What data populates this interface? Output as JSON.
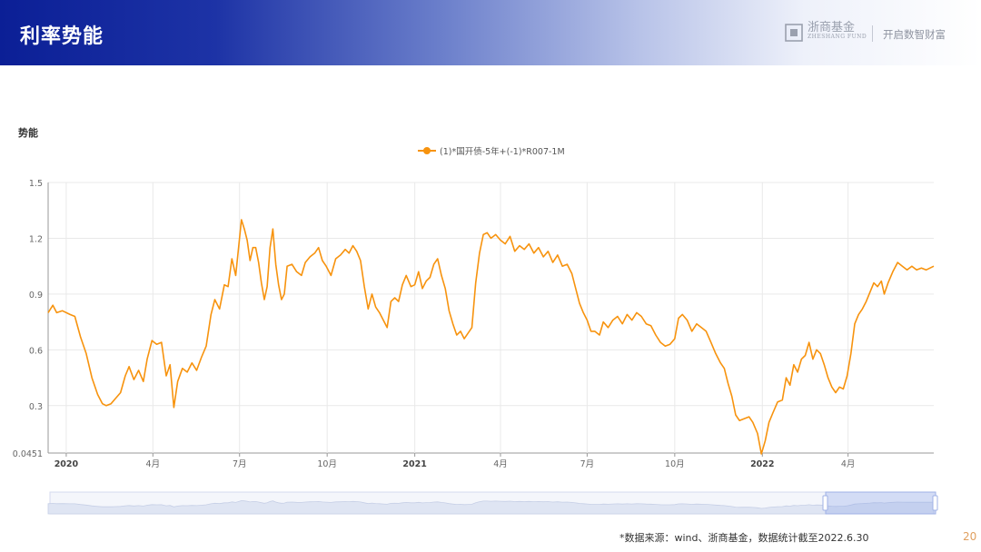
{
  "header": {
    "title": "利率势能",
    "logo_cn": "浙商基金",
    "logo_en": "ZHESHANG FUND",
    "slogan": "开启数智财富"
  },
  "section_label": "势能",
  "footnote": "*数据来源：wind、浙商基金，数据统计截至2022.6.30",
  "page_number": "20",
  "colors": {
    "series": "#f7930e",
    "header_start": "#0b1f96",
    "axis_text": "#666666",
    "grid": "#e9e9e9"
  },
  "chart_data": {
    "type": "line",
    "title": "",
    "legend_position": "top-center",
    "grid": true,
    "x_range": [
      "2019-12-13",
      "2022-06-30"
    ],
    "ylim": [
      0.0451,
      1.5
    ],
    "y_ticks": [
      "0.0451",
      "0.3",
      "0.6",
      "0.9",
      "1.2",
      "1.5"
    ],
    "x_ticks": [
      {
        "date": "2020-01-01",
        "label": "2020",
        "bold": true
      },
      {
        "date": "2020-04-01",
        "label": "4月",
        "bold": false
      },
      {
        "date": "2020-07-01",
        "label": "7月",
        "bold": false
      },
      {
        "date": "2020-10-01",
        "label": "10月",
        "bold": false
      },
      {
        "date": "2021-01-01",
        "label": "2021",
        "bold": true
      },
      {
        "date": "2021-04-01",
        "label": "4月",
        "bold": false
      },
      {
        "date": "2021-07-01",
        "label": "7月",
        "bold": false
      },
      {
        "date": "2021-10-01",
        "label": "10月",
        "bold": false
      },
      {
        "date": "2022-01-01",
        "label": "2022",
        "bold": true
      },
      {
        "date": "2022-04-01",
        "label": "4月",
        "bold": false
      }
    ],
    "series": [
      {
        "name": "(1)*国开债-5年+(-1)*R007-1M",
        "color": "#f7930e",
        "points": [
          [
            "2019-12-13",
            0.8
          ],
          [
            "2019-12-18",
            0.84
          ],
          [
            "2019-12-22",
            0.8
          ],
          [
            "2019-12-28",
            0.81
          ],
          [
            "2020-01-05",
            0.79
          ],
          [
            "2020-01-10",
            0.78
          ],
          [
            "2020-01-16",
            0.67
          ],
          [
            "2020-01-22",
            0.58
          ],
          [
            "2020-01-28",
            0.45
          ],
          [
            "2020-02-03",
            0.36
          ],
          [
            "2020-02-08",
            0.31
          ],
          [
            "2020-02-12",
            0.3
          ],
          [
            "2020-02-17",
            0.31
          ],
          [
            "2020-02-22",
            0.34
          ],
          [
            "2020-02-27",
            0.37
          ],
          [
            "2020-03-03",
            0.46
          ],
          [
            "2020-03-07",
            0.51
          ],
          [
            "2020-03-12",
            0.44
          ],
          [
            "2020-03-17",
            0.49
          ],
          [
            "2020-03-22",
            0.43
          ],
          [
            "2020-03-26",
            0.55
          ],
          [
            "2020-03-31",
            0.65
          ],
          [
            "2020-04-05",
            0.63
          ],
          [
            "2020-04-10",
            0.64
          ],
          [
            "2020-04-15",
            0.46
          ],
          [
            "2020-04-19",
            0.52
          ],
          [
            "2020-04-23",
            0.29
          ],
          [
            "2020-04-27",
            0.43
          ],
          [
            "2020-05-02",
            0.5
          ],
          [
            "2020-05-07",
            0.48
          ],
          [
            "2020-05-12",
            0.53
          ],
          [
            "2020-05-17",
            0.49
          ],
          [
            "2020-05-22",
            0.56
          ],
          [
            "2020-05-27",
            0.62
          ],
          [
            "2020-06-01",
            0.79
          ],
          [
            "2020-06-05",
            0.87
          ],
          [
            "2020-06-10",
            0.82
          ],
          [
            "2020-06-15",
            0.95
          ],
          [
            "2020-06-19",
            0.94
          ],
          [
            "2020-06-23",
            1.09
          ],
          [
            "2020-06-27",
            1.0
          ],
          [
            "2020-07-01",
            1.2
          ],
          [
            "2020-07-03",
            1.3
          ],
          [
            "2020-07-06",
            1.25
          ],
          [
            "2020-07-09",
            1.19
          ],
          [
            "2020-07-12",
            1.08
          ],
          [
            "2020-07-15",
            1.15
          ],
          [
            "2020-07-18",
            1.15
          ],
          [
            "2020-07-21",
            1.07
          ],
          [
            "2020-07-24",
            0.96
          ],
          [
            "2020-07-27",
            0.87
          ],
          [
            "2020-07-30",
            0.94
          ],
          [
            "2020-08-02",
            1.15
          ],
          [
            "2020-08-05",
            1.25
          ],
          [
            "2020-08-08",
            1.06
          ],
          [
            "2020-08-11",
            0.95
          ],
          [
            "2020-08-14",
            0.87
          ],
          [
            "2020-08-17",
            0.9
          ],
          [
            "2020-08-20",
            1.05
          ],
          [
            "2020-08-25",
            1.06
          ],
          [
            "2020-08-30",
            1.02
          ],
          [
            "2020-09-04",
            1.0
          ],
          [
            "2020-09-08",
            1.07
          ],
          [
            "2020-09-13",
            1.1
          ],
          [
            "2020-09-18",
            1.12
          ],
          [
            "2020-09-22",
            1.15
          ],
          [
            "2020-09-26",
            1.08
          ],
          [
            "2020-09-30",
            1.05
          ],
          [
            "2020-10-05",
            1.0
          ],
          [
            "2020-10-10",
            1.09
          ],
          [
            "2020-10-15",
            1.11
          ],
          [
            "2020-10-20",
            1.14
          ],
          [
            "2020-10-24",
            1.12
          ],
          [
            "2020-10-28",
            1.16
          ],
          [
            "2020-11-01",
            1.13
          ],
          [
            "2020-11-05",
            1.08
          ],
          [
            "2020-11-09",
            0.94
          ],
          [
            "2020-11-13",
            0.82
          ],
          [
            "2020-11-17",
            0.9
          ],
          [
            "2020-11-21",
            0.83
          ],
          [
            "2020-11-25",
            0.8
          ],
          [
            "2020-11-29",
            0.76
          ],
          [
            "2020-12-03",
            0.72
          ],
          [
            "2020-12-07",
            0.86
          ],
          [
            "2020-12-11",
            0.88
          ],
          [
            "2020-12-15",
            0.86
          ],
          [
            "2020-12-19",
            0.95
          ],
          [
            "2020-12-23",
            1.0
          ],
          [
            "2020-12-28",
            0.94
          ],
          [
            "2021-01-01",
            0.95
          ],
          [
            "2021-01-05",
            1.02
          ],
          [
            "2021-01-09",
            0.93
          ],
          [
            "2021-01-13",
            0.97
          ],
          [
            "2021-01-17",
            0.99
          ],
          [
            "2021-01-21",
            1.06
          ],
          [
            "2021-01-25",
            1.09
          ],
          [
            "2021-01-29",
            1.0
          ],
          [
            "2021-02-02",
            0.93
          ],
          [
            "2021-02-06",
            0.81
          ],
          [
            "2021-02-10",
            0.74
          ],
          [
            "2021-02-14",
            0.68
          ],
          [
            "2021-02-18",
            0.7
          ],
          [
            "2021-02-22",
            0.66
          ],
          [
            "2021-02-26",
            0.69
          ],
          [
            "2021-03-02",
            0.72
          ],
          [
            "2021-03-06",
            0.96
          ],
          [
            "2021-03-10",
            1.12
          ],
          [
            "2021-03-14",
            1.22
          ],
          [
            "2021-03-18",
            1.23
          ],
          [
            "2021-03-22",
            1.2
          ],
          [
            "2021-03-27",
            1.22
          ],
          [
            "2021-04-01",
            1.19
          ],
          [
            "2021-04-06",
            1.17
          ],
          [
            "2021-04-11",
            1.21
          ],
          [
            "2021-04-16",
            1.13
          ],
          [
            "2021-04-21",
            1.16
          ],
          [
            "2021-04-26",
            1.14
          ],
          [
            "2021-05-01",
            1.17
          ],
          [
            "2021-05-06",
            1.12
          ],
          [
            "2021-05-11",
            1.15
          ],
          [
            "2021-05-16",
            1.1
          ],
          [
            "2021-05-21",
            1.13
          ],
          [
            "2021-05-26",
            1.07
          ],
          [
            "2021-05-31",
            1.11
          ],
          [
            "2021-06-05",
            1.05
          ],
          [
            "2021-06-10",
            1.06
          ],
          [
            "2021-06-15",
            1.01
          ],
          [
            "2021-06-19",
            0.93
          ],
          [
            "2021-06-23",
            0.85
          ],
          [
            "2021-06-27",
            0.8
          ],
          [
            "2021-07-01",
            0.76
          ],
          [
            "2021-07-05",
            0.7
          ],
          [
            "2021-07-09",
            0.7
          ],
          [
            "2021-07-14",
            0.68
          ],
          [
            "2021-07-18",
            0.75
          ],
          [
            "2021-07-23",
            0.72
          ],
          [
            "2021-07-28",
            0.76
          ],
          [
            "2021-08-02",
            0.78
          ],
          [
            "2021-08-07",
            0.74
          ],
          [
            "2021-08-12",
            0.79
          ],
          [
            "2021-08-17",
            0.76
          ],
          [
            "2021-08-22",
            0.8
          ],
          [
            "2021-08-27",
            0.78
          ],
          [
            "2021-09-01",
            0.74
          ],
          [
            "2021-09-06",
            0.73
          ],
          [
            "2021-09-11",
            0.68
          ],
          [
            "2021-09-16",
            0.64
          ],
          [
            "2021-09-21",
            0.62
          ],
          [
            "2021-09-26",
            0.63
          ],
          [
            "2021-10-01",
            0.66
          ],
          [
            "2021-10-05",
            0.77
          ],
          [
            "2021-10-09",
            0.79
          ],
          [
            "2021-10-14",
            0.76
          ],
          [
            "2021-10-19",
            0.7
          ],
          [
            "2021-10-24",
            0.74
          ],
          [
            "2021-10-29",
            0.72
          ],
          [
            "2021-11-03",
            0.7
          ],
          [
            "2021-11-08",
            0.64
          ],
          [
            "2021-11-13",
            0.58
          ],
          [
            "2021-11-18",
            0.53
          ],
          [
            "2021-11-22",
            0.5
          ],
          [
            "2021-11-26",
            0.42
          ],
          [
            "2021-11-30",
            0.35
          ],
          [
            "2021-12-04",
            0.25
          ],
          [
            "2021-12-08",
            0.22
          ],
          [
            "2021-12-13",
            0.23
          ],
          [
            "2021-12-18",
            0.24
          ],
          [
            "2021-12-22",
            0.21
          ],
          [
            "2021-12-27",
            0.15
          ],
          [
            "2021-12-31",
            0.04
          ],
          [
            "2022-01-04",
            0.11
          ],
          [
            "2022-01-08",
            0.21
          ],
          [
            "2022-01-12",
            0.26
          ],
          [
            "2022-01-17",
            0.32
          ],
          [
            "2022-01-22",
            0.33
          ],
          [
            "2022-01-26",
            0.45
          ],
          [
            "2022-01-30",
            0.41
          ],
          [
            "2022-02-03",
            0.52
          ],
          [
            "2022-02-07",
            0.48
          ],
          [
            "2022-02-11",
            0.55
          ],
          [
            "2022-02-15",
            0.57
          ],
          [
            "2022-02-19",
            0.64
          ],
          [
            "2022-02-23",
            0.55
          ],
          [
            "2022-02-27",
            0.6
          ],
          [
            "2022-03-03",
            0.58
          ],
          [
            "2022-03-07",
            0.52
          ],
          [
            "2022-03-11",
            0.45
          ],
          [
            "2022-03-15",
            0.4
          ],
          [
            "2022-03-19",
            0.37
          ],
          [
            "2022-03-23",
            0.4
          ],
          [
            "2022-03-27",
            0.39
          ],
          [
            "2022-03-31",
            0.46
          ],
          [
            "2022-04-04",
            0.58
          ],
          [
            "2022-04-08",
            0.74
          ],
          [
            "2022-04-12",
            0.79
          ],
          [
            "2022-04-16",
            0.82
          ],
          [
            "2022-04-20",
            0.86
          ],
          [
            "2022-04-24",
            0.91
          ],
          [
            "2022-04-28",
            0.96
          ],
          [
            "2022-05-02",
            0.94
          ],
          [
            "2022-05-06",
            0.97
          ],
          [
            "2022-05-09",
            0.9
          ],
          [
            "2022-05-13",
            0.96
          ],
          [
            "2022-05-18",
            1.02
          ],
          [
            "2022-05-23",
            1.07
          ],
          [
            "2022-05-28",
            1.05
          ],
          [
            "2022-06-02",
            1.03
          ],
          [
            "2022-06-07",
            1.05
          ],
          [
            "2022-06-12",
            1.03
          ],
          [
            "2022-06-17",
            1.04
          ],
          [
            "2022-06-22",
            1.03
          ],
          [
            "2022-06-30",
            1.05
          ]
        ]
      }
    ]
  }
}
